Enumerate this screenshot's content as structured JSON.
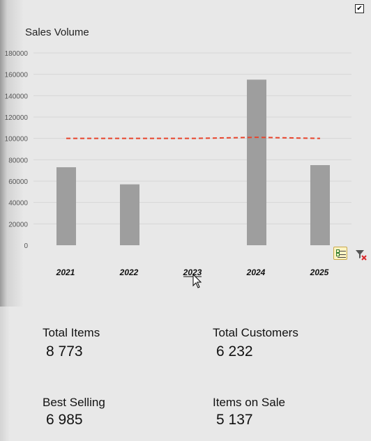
{
  "checkbox": {
    "checked": true,
    "symbol": "✔"
  },
  "chart_data": {
    "type": "bar",
    "title": "Sales Volume",
    "categories": [
      "2021",
      "2022",
      "2023",
      "2024",
      "2025"
    ],
    "values": [
      73000,
      57000,
      0,
      155000,
      75000
    ],
    "target_line": {
      "from": 100000,
      "to": 100000,
      "peak": 101000,
      "color": "#e8442c",
      "style": "dashed"
    },
    "ylim": [
      0,
      180000
    ],
    "y_ticks": [
      0,
      20000,
      40000,
      60000,
      80000,
      100000,
      120000,
      140000,
      160000,
      180000
    ],
    "grid": true,
    "bar_color": "#9e9e9e",
    "selected_category": "2023"
  },
  "toolbar": {
    "multi_select_icon": "multi-select-checklist-icon",
    "clear_filter_icon": "clear-filter-icon"
  },
  "kpis": [
    {
      "label": "Total Items",
      "value": "8 773"
    },
    {
      "label": "Total Customers",
      "value": "6 232"
    },
    {
      "label": "Best Selling",
      "value": "6 985"
    },
    {
      "label": "Items on Sale",
      "value": "5 137"
    }
  ]
}
